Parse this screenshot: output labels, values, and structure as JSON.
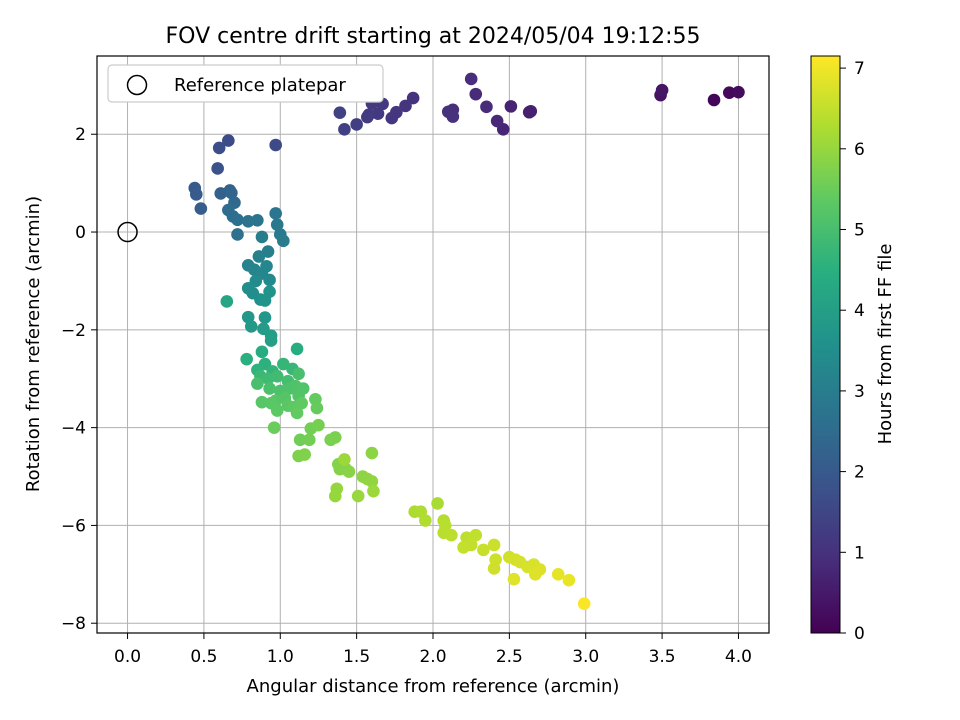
{
  "chart_data": {
    "type": "scatter",
    "title": "FOV centre drift starting at 2024/05/04 19:12:55",
    "xlabel": "Angular distance from reference (arcmin)",
    "ylabel": "Rotation from reference (arcmin)",
    "xlim": [
      -0.2,
      4.2
    ],
    "ylim": [
      -8.2,
      3.6
    ],
    "xticks": [
      0.0,
      0.5,
      1.0,
      1.5,
      2.0,
      2.5,
      3.0,
      3.5,
      4.0
    ],
    "yticks": [
      -8,
      -6,
      -4,
      -2,
      0,
      2
    ],
    "xtick_labels": [
      "0.0",
      "0.5",
      "1.0",
      "1.5",
      "2.0",
      "2.5",
      "3.0",
      "3.5",
      "4.0"
    ],
    "ytick_labels": [
      "−8",
      "−6",
      "−4",
      "−2",
      "0",
      "2"
    ],
    "grid": true,
    "colormap": "viridis",
    "colorbar": {
      "label": "Hours from first FF file",
      "range": [
        0,
        7.15
      ],
      "ticks": [
        0,
        1,
        2,
        3,
        4,
        5,
        6,
        7
      ],
      "tick_labels": [
        "0",
        "1",
        "2",
        "3",
        "4",
        "5",
        "6",
        "7"
      ]
    },
    "reference": {
      "x": 0.0,
      "y": 0.0,
      "label": "Reference platepar"
    },
    "legend": {
      "location": "top-left",
      "entries": [
        "Reference platepar"
      ]
    },
    "points": [
      {
        "x": 3.84,
        "y": 2.7,
        "c": 0.1
      },
      {
        "x": 3.94,
        "y": 2.85,
        "c": 0.15
      },
      {
        "x": 4.0,
        "y": 2.86,
        "c": 0.2
      },
      {
        "x": 3.49,
        "y": 2.8,
        "c": 0.35
      },
      {
        "x": 3.5,
        "y": 2.9,
        "c": 0.4
      },
      {
        "x": 2.63,
        "y": 2.45,
        "c": 0.6
      },
      {
        "x": 2.64,
        "y": 2.47,
        "c": 0.62
      },
      {
        "x": 2.51,
        "y": 2.57,
        "c": 0.7
      },
      {
        "x": 2.46,
        "y": 2.1,
        "c": 0.75
      },
      {
        "x": 2.42,
        "y": 2.27,
        "c": 0.8
      },
      {
        "x": 2.35,
        "y": 2.56,
        "c": 0.85
      },
      {
        "x": 2.28,
        "y": 2.82,
        "c": 0.88
      },
      {
        "x": 2.25,
        "y": 3.13,
        "c": 0.92
      },
      {
        "x": 2.13,
        "y": 2.5,
        "c": 0.95
      },
      {
        "x": 2.1,
        "y": 2.46,
        "c": 0.97
      },
      {
        "x": 2.13,
        "y": 2.36,
        "c": 1.0
      },
      {
        "x": 1.87,
        "y": 2.74,
        "c": 1.05
      },
      {
        "x": 1.82,
        "y": 2.58,
        "c": 1.08
      },
      {
        "x": 1.76,
        "y": 2.45,
        "c": 1.1
      },
      {
        "x": 1.73,
        "y": 2.33,
        "c": 1.12
      },
      {
        "x": 1.67,
        "y": 2.62,
        "c": 1.15
      },
      {
        "x": 1.64,
        "y": 2.42,
        "c": 1.18
      },
      {
        "x": 1.6,
        "y": 2.63,
        "c": 1.2
      },
      {
        "x": 1.58,
        "y": 2.4,
        "c": 1.22
      },
      {
        "x": 1.57,
        "y": 2.35,
        "c": 1.25
      },
      {
        "x": 1.5,
        "y": 2.2,
        "c": 1.3
      },
      {
        "x": 1.42,
        "y": 2.1,
        "c": 1.35
      },
      {
        "x": 1.39,
        "y": 2.44,
        "c": 1.4
      },
      {
        "x": 0.97,
        "y": 1.78,
        "c": 1.6
      },
      {
        "x": 0.66,
        "y": 1.87,
        "c": 1.65
      },
      {
        "x": 0.6,
        "y": 1.72,
        "c": 1.7
      },
      {
        "x": 0.59,
        "y": 1.3,
        "c": 1.8
      },
      {
        "x": 0.44,
        "y": 0.9,
        "c": 2.0
      },
      {
        "x": 0.45,
        "y": 0.77,
        "c": 2.05
      },
      {
        "x": 0.48,
        "y": 0.48,
        "c": 2.1
      },
      {
        "x": 0.61,
        "y": 0.79,
        "c": 2.2
      },
      {
        "x": 0.67,
        "y": 0.85,
        "c": 2.25
      },
      {
        "x": 0.68,
        "y": 0.8,
        "c": 2.3
      },
      {
        "x": 0.7,
        "y": 0.6,
        "c": 2.4
      },
      {
        "x": 0.66,
        "y": 0.45,
        "c": 2.5
      },
      {
        "x": 0.69,
        "y": 0.32,
        "c": 2.55
      },
      {
        "x": 0.72,
        "y": 0.25,
        "c": 2.6
      },
      {
        "x": 0.72,
        "y": -0.05,
        "c": 2.65
      },
      {
        "x": 0.79,
        "y": 0.22,
        "c": 2.7
      },
      {
        "x": 0.85,
        "y": 0.24,
        "c": 2.75
      },
      {
        "x": 0.97,
        "y": 0.38,
        "c": 2.8
      },
      {
        "x": 0.98,
        "y": 0.15,
        "c": 2.85
      },
      {
        "x": 1.0,
        "y": -0.05,
        "c": 2.9
      },
      {
        "x": 1.02,
        "y": -0.18,
        "c": 2.95
      },
      {
        "x": 0.88,
        "y": -0.1,
        "c": 3.0
      },
      {
        "x": 0.92,
        "y": -0.4,
        "c": 3.05
      },
      {
        "x": 0.86,
        "y": -0.5,
        "c": 3.1
      },
      {
        "x": 0.79,
        "y": -0.68,
        "c": 3.15
      },
      {
        "x": 0.83,
        "y": -0.77,
        "c": 3.2
      },
      {
        "x": 0.88,
        "y": -0.85,
        "c": 3.25
      },
      {
        "x": 0.91,
        "y": -0.7,
        "c": 3.3
      },
      {
        "x": 0.93,
        "y": -0.98,
        "c": 3.35
      },
      {
        "x": 0.84,
        "y": -1.0,
        "c": 3.4
      },
      {
        "x": 0.79,
        "y": -1.15,
        "c": 3.45
      },
      {
        "x": 0.82,
        "y": -1.25,
        "c": 3.5
      },
      {
        "x": 0.87,
        "y": -1.38,
        "c": 3.55
      },
      {
        "x": 0.9,
        "y": -1.4,
        "c": 3.6
      },
      {
        "x": 0.93,
        "y": -1.22,
        "c": 3.65
      },
      {
        "x": 0.9,
        "y": -1.75,
        "c": 3.75
      },
      {
        "x": 0.79,
        "y": -1.74,
        "c": 3.8
      },
      {
        "x": 0.81,
        "y": -1.93,
        "c": 3.85
      },
      {
        "x": 0.89,
        "y": -1.98,
        "c": 3.9
      },
      {
        "x": 0.94,
        "y": -2.12,
        "c": 3.95
      },
      {
        "x": 0.94,
        "y": -2.22,
        "c": 4.0
      },
      {
        "x": 0.65,
        "y": -1.42,
        "c": 4.2
      },
      {
        "x": 0.88,
        "y": -2.45,
        "c": 4.4
      },
      {
        "x": 1.11,
        "y": -2.39,
        "c": 4.45
      },
      {
        "x": 0.78,
        "y": -2.6,
        "c": 4.5
      },
      {
        "x": 0.9,
        "y": -2.7,
        "c": 4.55
      },
      {
        "x": 0.85,
        "y": -2.82,
        "c": 4.6
      },
      {
        "x": 0.95,
        "y": -2.85,
        "c": 4.65
      },
      {
        "x": 1.02,
        "y": -2.7,
        "c": 4.7
      },
      {
        "x": 1.08,
        "y": -2.8,
        "c": 4.75
      },
      {
        "x": 0.87,
        "y": -2.95,
        "c": 4.8
      },
      {
        "x": 0.92,
        "y": -3.0,
        "c": 4.85
      },
      {
        "x": 0.98,
        "y": -2.95,
        "c": 4.9
      },
      {
        "x": 1.05,
        "y": -3.05,
        "c": 4.95
      },
      {
        "x": 1.12,
        "y": -2.9,
        "c": 5.0
      },
      {
        "x": 0.85,
        "y": -3.1,
        "c": 5.02
      },
      {
        "x": 0.93,
        "y": -3.2,
        "c": 5.05
      },
      {
        "x": 1.0,
        "y": -3.25,
        "c": 5.08
      },
      {
        "x": 1.06,
        "y": -3.2,
        "c": 5.1
      },
      {
        "x": 1.1,
        "y": -3.15,
        "c": 5.12
      },
      {
        "x": 1.15,
        "y": -3.2,
        "c": 5.15
      },
      {
        "x": 1.12,
        "y": -3.35,
        "c": 5.18
      },
      {
        "x": 1.03,
        "y": -3.4,
        "c": 5.2
      },
      {
        "x": 0.97,
        "y": -3.45,
        "c": 5.22
      },
      {
        "x": 0.88,
        "y": -3.48,
        "c": 5.25
      },
      {
        "x": 0.94,
        "y": -3.5,
        "c": 5.28
      },
      {
        "x": 1.05,
        "y": -3.55,
        "c": 5.3
      },
      {
        "x": 0.98,
        "y": -3.65,
        "c": 5.32
      },
      {
        "x": 1.09,
        "y": -3.58,
        "c": 5.35
      },
      {
        "x": 1.14,
        "y": -3.5,
        "c": 5.38
      },
      {
        "x": 1.11,
        "y": -3.7,
        "c": 5.4
      },
      {
        "x": 1.23,
        "y": -3.42,
        "c": 5.42
      },
      {
        "x": 1.24,
        "y": -3.6,
        "c": 5.45
      },
      {
        "x": 0.96,
        "y": -4.0,
        "c": 5.5
      },
      {
        "x": 1.13,
        "y": -4.25,
        "c": 5.55
      },
      {
        "x": 1.2,
        "y": -4.02,
        "c": 5.6
      },
      {
        "x": 1.19,
        "y": -4.25,
        "c": 5.62
      },
      {
        "x": 1.25,
        "y": -3.95,
        "c": 5.65
      },
      {
        "x": 1.33,
        "y": -4.25,
        "c": 5.68
      },
      {
        "x": 1.36,
        "y": -4.2,
        "c": 5.7
      },
      {
        "x": 1.12,
        "y": -4.58,
        "c": 5.72
      },
      {
        "x": 1.16,
        "y": -4.55,
        "c": 5.75
      },
      {
        "x": 1.38,
        "y": -4.75,
        "c": 5.78
      },
      {
        "x": 1.39,
        "y": -4.85,
        "c": 5.8
      },
      {
        "x": 1.43,
        "y": -4.85,
        "c": 5.82
      },
      {
        "x": 1.45,
        "y": -4.9,
        "c": 5.85
      },
      {
        "x": 1.6,
        "y": -4.52,
        "c": 5.88
      },
      {
        "x": 1.54,
        "y": -5.0,
        "c": 5.9
      },
      {
        "x": 1.57,
        "y": -5.05,
        "c": 5.92
      },
      {
        "x": 1.6,
        "y": -5.1,
        "c": 5.95
      },
      {
        "x": 1.37,
        "y": -5.25,
        "c": 5.98
      },
      {
        "x": 1.36,
        "y": -5.4,
        "c": 6.0
      },
      {
        "x": 1.51,
        "y": -5.4,
        "c": 6.02
      },
      {
        "x": 1.61,
        "y": -5.3,
        "c": 6.05
      },
      {
        "x": 1.42,
        "y": -4.65,
        "c": 6.08
      },
      {
        "x": 2.03,
        "y": -5.55,
        "c": 6.2
      },
      {
        "x": 1.88,
        "y": -5.72,
        "c": 6.25
      },
      {
        "x": 1.92,
        "y": -5.72,
        "c": 6.28
      },
      {
        "x": 1.95,
        "y": -5.9,
        "c": 6.3
      },
      {
        "x": 2.07,
        "y": -5.9,
        "c": 6.35
      },
      {
        "x": 2.08,
        "y": -6.0,
        "c": 6.38
      },
      {
        "x": 2.07,
        "y": -6.15,
        "c": 6.4
      },
      {
        "x": 2.12,
        "y": -6.2,
        "c": 6.42
      },
      {
        "x": 2.22,
        "y": -6.25,
        "c": 6.45
      },
      {
        "x": 2.28,
        "y": -6.2,
        "c": 6.48
      },
      {
        "x": 2.25,
        "y": -6.4,
        "c": 6.5
      },
      {
        "x": 2.2,
        "y": -6.45,
        "c": 6.52
      },
      {
        "x": 2.33,
        "y": -6.5,
        "c": 6.55
      },
      {
        "x": 2.4,
        "y": -6.4,
        "c": 6.58
      },
      {
        "x": 2.41,
        "y": -6.7,
        "c": 6.6
      },
      {
        "x": 2.4,
        "y": -6.88,
        "c": 6.62
      },
      {
        "x": 2.5,
        "y": -6.65,
        "c": 6.65
      },
      {
        "x": 2.54,
        "y": -6.7,
        "c": 6.68
      },
      {
        "x": 2.57,
        "y": -6.75,
        "c": 6.7
      },
      {
        "x": 2.62,
        "y": -6.85,
        "c": 6.72
      },
      {
        "x": 2.66,
        "y": -6.8,
        "c": 6.75
      },
      {
        "x": 2.7,
        "y": -6.9,
        "c": 6.78
      },
      {
        "x": 2.67,
        "y": -7.0,
        "c": 6.8
      },
      {
        "x": 2.53,
        "y": -7.1,
        "c": 6.82
      },
      {
        "x": 2.82,
        "y": -7.0,
        "c": 6.88
      },
      {
        "x": 2.89,
        "y": -7.12,
        "c": 6.92
      },
      {
        "x": 2.99,
        "y": -7.6,
        "c": 7.1
      }
    ]
  }
}
